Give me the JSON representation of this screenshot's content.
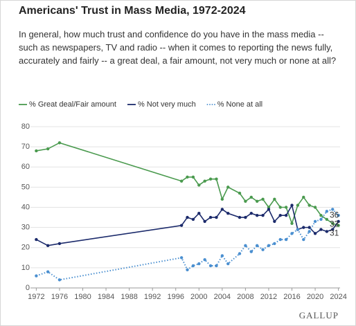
{
  "chart_data": {
    "type": "line",
    "title": "Americans' Trust in Mass Media, 1972-2024",
    "subtitle": "In general, how much trust and confidence do you have in the mass media -- such as newspapers, TV and radio -- when it comes to reporting the news fully, accurately and fairly -- a great deal, a fair amount, not very much or none at all?",
    "source": "GALLUP",
    "x": [
      1972,
      1974,
      1976,
      1997,
      1998,
      1999,
      2000,
      2001,
      2002,
      2003,
      2004,
      2005,
      2007,
      2008,
      2009,
      2010,
      2011,
      2012,
      2013,
      2014,
      2015,
      2016,
      2017,
      2018,
      2019,
      2020,
      2021,
      2022,
      2023,
      2024
    ],
    "series": [
      {
        "name": "% Great deal/Fair amount",
        "color": "#4a9a4e",
        "style": "solid",
        "values": [
          68,
          69,
          72,
          53,
          55,
          55,
          51,
          53,
          54,
          54,
          44,
          50,
          47,
          43,
          45,
          43,
          44,
          40,
          44,
          40,
          40,
          32,
          41,
          45,
          41,
          40,
          36,
          34,
          32,
          31
        ]
      },
      {
        "name": "% Not very much",
        "color": "#1b2a6b",
        "style": "solid",
        "values": [
          24,
          21,
          22,
          31,
          35,
          34,
          37,
          33,
          35,
          35,
          39,
          37,
          35,
          35,
          37,
          36,
          36,
          39,
          33,
          36,
          36,
          41,
          29,
          30,
          30,
          27,
          29,
          28,
          29,
          33
        ]
      },
      {
        "name": "% None at all",
        "color": "#4a8fd0",
        "style": "dotted",
        "values": [
          6,
          8,
          4,
          15,
          9,
          11,
          12,
          14,
          11,
          11,
          16,
          12,
          17,
          21,
          18,
          21,
          19,
          21,
          22,
          24,
          24,
          27,
          29,
          24,
          28,
          33,
          34,
          38,
          39,
          36
        ]
      }
    ],
    "end_labels": true,
    "xlim": [
      1971,
      2025
    ],
    "xticks": [
      1972,
      1976,
      1980,
      1984,
      1988,
      1992,
      1996,
      2000,
      2004,
      2008,
      2012,
      2016,
      2020,
      2024
    ],
    "ylim": [
      0,
      80
    ],
    "yticks": [
      0,
      10,
      20,
      30,
      40,
      50,
      60,
      70,
      80
    ],
    "grid": true
  }
}
